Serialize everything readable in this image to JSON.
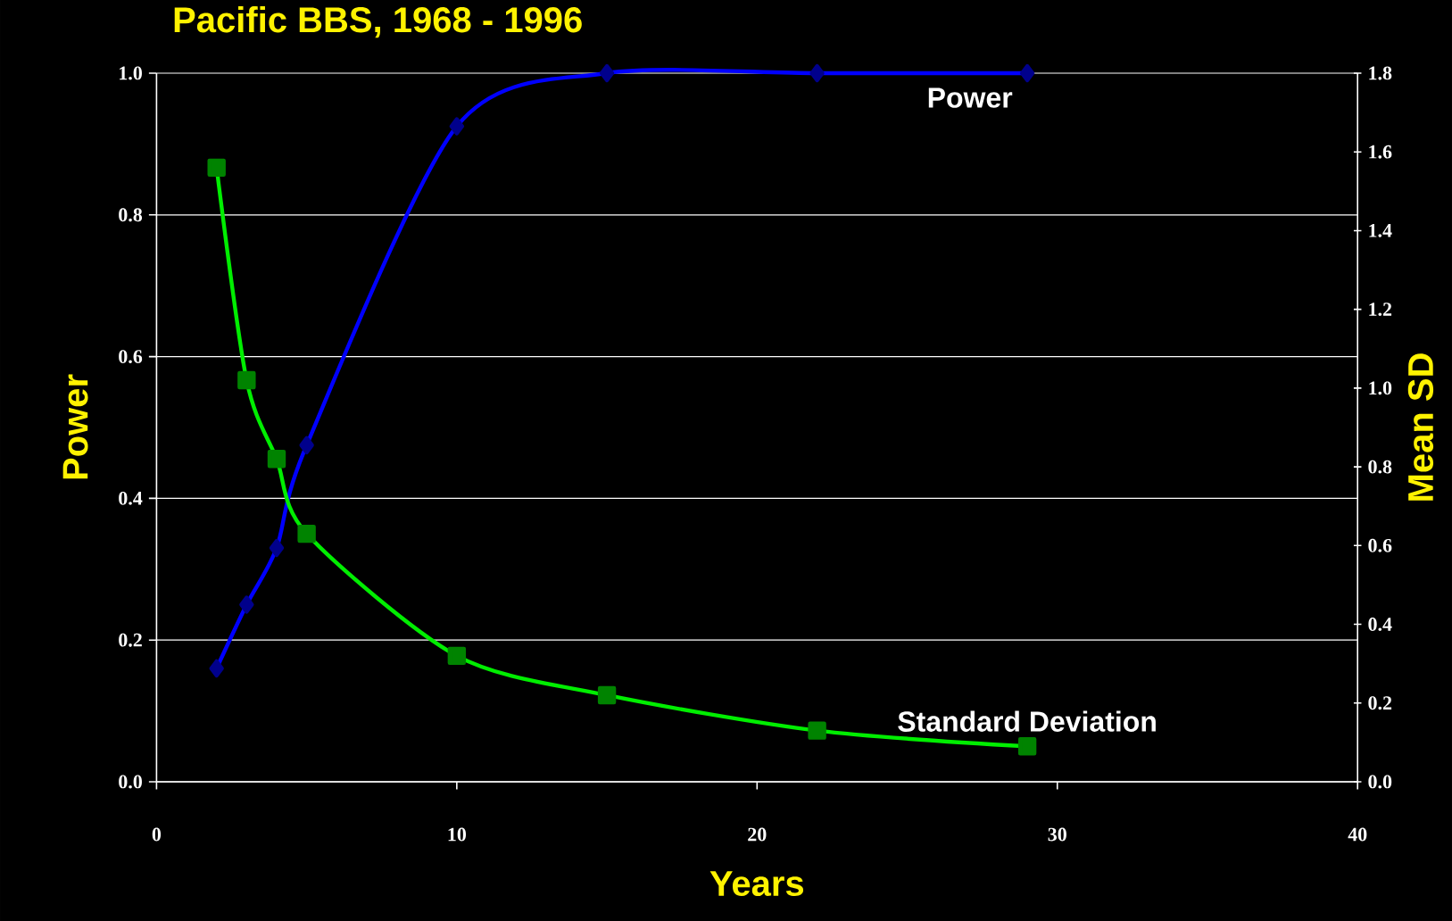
{
  "chart_data": {
    "type": "line",
    "title": "Pacific BBS, 1968 - 1996",
    "xlabel": "Years",
    "ylabel": "Power",
    "y2label": "Mean SD",
    "x": [
      2,
      3,
      4,
      5,
      10,
      15,
      22,
      29
    ],
    "series": [
      {
        "name": "Power",
        "color": "#0000ff",
        "marker": "diamond",
        "values": [
          0.16,
          0.25,
          0.33,
          0.475,
          0.925,
          1.0,
          1.0,
          1.0
        ]
      },
      {
        "name": "Standard Deviation",
        "color": "#00ee00",
        "marker": "square",
        "axis": "y2",
        "values": [
          1.56,
          1.02,
          0.82,
          0.63,
          0.32,
          0.22,
          0.13,
          0.09
        ]
      }
    ],
    "xlim": [
      0,
      40
    ],
    "xticks": [
      0,
      10,
      20,
      30,
      40
    ],
    "ylim": [
      0,
      1.0
    ],
    "yticks": [
      {
        "value": 0,
        "label": "0.0"
      },
      {
        "value": 0.2,
        "label": "0.2"
      },
      {
        "value": 0.4,
        "label": "0.4"
      },
      {
        "value": 0.6,
        "label": "0.6"
      },
      {
        "value": 0.8,
        "label": "0.8"
      },
      {
        "value": 1.0,
        "label": "1.0"
      }
    ],
    "y2lim": [
      0,
      1.8
    ],
    "y2ticks": [
      {
        "value": 0,
        "label": "0.0"
      },
      {
        "value": 0.2,
        "label": "0.2"
      },
      {
        "value": 0.4,
        "label": "0.4"
      },
      {
        "value": 0.6,
        "label": "0.6"
      },
      {
        "value": 0.8,
        "label": "0.8"
      },
      {
        "value": 1.0,
        "label": "1.0"
      },
      {
        "value": 1.2,
        "label": "1.2"
      },
      {
        "value": 1.4,
        "label": "1.4"
      },
      {
        "value": 1.6,
        "label": "1.6"
      },
      {
        "value": 1.8,
        "label": "1.8"
      }
    ],
    "grid": "y"
  }
}
